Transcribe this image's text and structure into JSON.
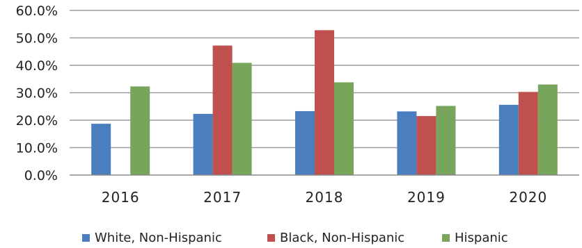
{
  "chart_data": {
    "type": "bar",
    "title": "",
    "xlabel": "",
    "ylabel": "",
    "ylim": [
      0,
      60
    ],
    "yticks": [
      0,
      10,
      20,
      30,
      40,
      50,
      60
    ],
    "ytick_labels": [
      "0.0%",
      "10.0%",
      "20.0%",
      "30.0%",
      "40.0%",
      "50.0%",
      "60.0%"
    ],
    "categories": [
      "2016",
      "2017",
      "2018",
      "2019",
      "2020"
    ],
    "series": [
      {
        "name": "White, Non-Hispanic",
        "color": "#4a7ebf",
        "values": [
          18.7,
          22.3,
          23.3,
          23.2,
          25.6
        ]
      },
      {
        "name": "Black, Non-Hispanic",
        "color": "#c0504d",
        "values": [
          0,
          47.2,
          52.8,
          21.5,
          30.3
        ]
      },
      {
        "name": "Hispanic",
        "color": "#77a55c",
        "values": [
          32.3,
          40.9,
          33.8,
          25.2,
          33.0
        ]
      }
    ],
    "grid": true,
    "legend_position": "bottom"
  }
}
